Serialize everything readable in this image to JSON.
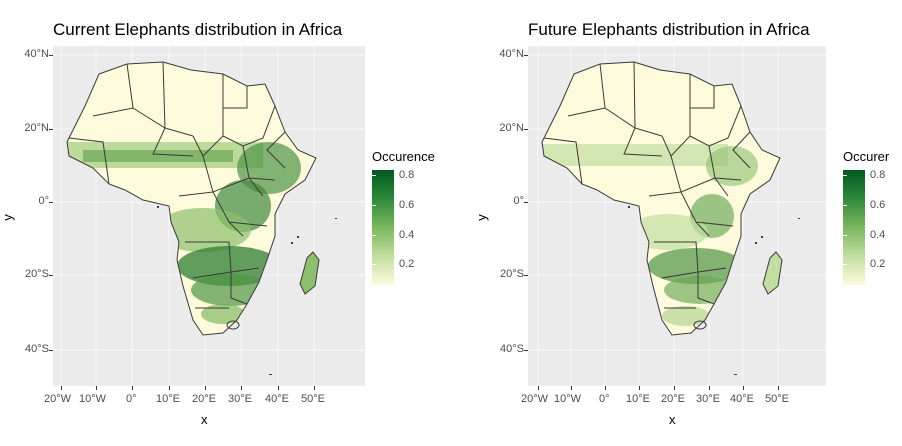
{
  "panels": [
    {
      "title": "Current Elephants distribution in Africa",
      "legend_title": "Occurence",
      "legend_labels": [
        "0.8",
        "0.6",
        "0.4",
        "0.2"
      ],
      "x_title": "x",
      "y_title": "y"
    },
    {
      "title": "Future Elephants distribution in Africa",
      "legend_title": "Occurer",
      "legend_labels": [
        "0.8",
        "0.6",
        "0.4",
        "0.2"
      ],
      "x_title": "x",
      "y_title": "y"
    }
  ],
  "y_ticks": [
    "40°N",
    "20°N",
    "0°",
    "20°S",
    "40°S"
  ],
  "x_ticks": [
    "20°W",
    "10°W",
    "0°",
    "10°E",
    "20°E",
    "30°E",
    "40°E",
    "50°E"
  ],
  "colors": {
    "panel_bg": "#ebebeb",
    "low": "#fffbdb",
    "high": "#005a1e",
    "border": "#3a3a3a"
  }
}
